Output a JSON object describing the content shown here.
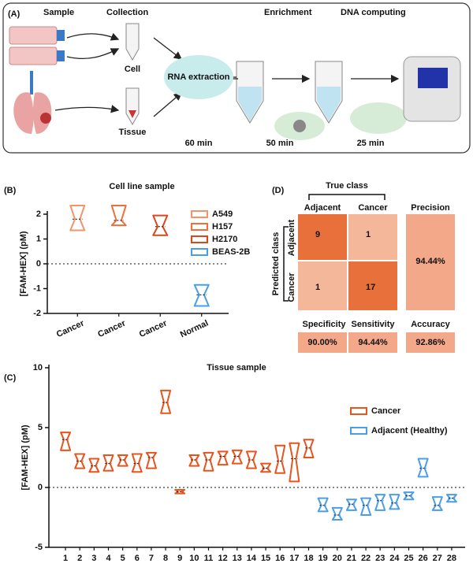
{
  "panel_a": {
    "label": "(A)",
    "steps": [
      "Sample",
      "Collection",
      "Enrichment",
      "DNA computing"
    ],
    "cell": "Cell",
    "tissue": "Tissue",
    "rna": "RNA extraction",
    "times": [
      "60 min",
      "50 min",
      "25 min"
    ]
  },
  "chart_data": [
    {
      "type": "box",
      "label": "(B)",
      "title": "Cell line sample",
      "y_label": "[FAM-HEX] (pM)",
      "categories": [
        "Cancer",
        "Cancer",
        "Cancer",
        "Normal"
      ],
      "series": [
        {
          "name": "A549",
          "color": "#f2946a",
          "low": [
            1.35,
            null,
            null,
            null
          ],
          "median": [
            1.8,
            null,
            null,
            null
          ],
          "high": [
            2.35,
            null,
            null,
            null
          ]
        },
        {
          "name": "H157",
          "color": "#ee6f3c",
          "low": [
            null,
            1.55,
            null,
            null
          ],
          "median": [
            null,
            1.75,
            null,
            null
          ],
          "high": [
            null,
            2.35,
            null,
            null
          ]
        },
        {
          "name": "H2170",
          "color": "#d9481a",
          "low": [
            null,
            null,
            1.15,
            null
          ],
          "median": [
            null,
            null,
            1.5,
            null
          ],
          "high": [
            null,
            null,
            1.95,
            null
          ]
        },
        {
          "name": "BEAS-2B",
          "color": "#4a9ee8",
          "low": [
            null,
            null,
            null,
            -1.7
          ],
          "median": [
            null,
            null,
            null,
            -1.25
          ],
          "high": [
            null,
            null,
            null,
            -0.85
          ]
        }
      ],
      "ylim": [
        -2,
        2
      ],
      "yticks": [
        -2,
        -1,
        0,
        1,
        2
      ],
      "zero_line": true
    },
    {
      "type": "box",
      "label": "(C)",
      "title": "Tissue sample",
      "y_label": "[FAM-HEX] (pM)",
      "categories": [
        "1",
        "2",
        "3",
        "4",
        "5",
        "6",
        "7",
        "8",
        "9",
        "10",
        "11",
        "12",
        "13",
        "14",
        "15",
        "16",
        "17",
        "18",
        "19",
        "20",
        "21",
        "22",
        "23",
        "24",
        "25",
        "26",
        "27",
        "28"
      ],
      "series": [
        {
          "name": "Cancer",
          "color": "#e8541c",
          "low": [
            3.1,
            1.6,
            1.3,
            1.4,
            1.8,
            1.3,
            1.6,
            6.2,
            -0.5,
            1.8,
            1.4,
            1.9,
            2.0,
            1.6,
            1.3,
            1.2,
            0.5,
            2.5,
            null,
            null,
            null,
            null,
            null,
            null,
            null,
            null,
            null,
            null
          ],
          "median": [
            4.0,
            2.2,
            1.8,
            2.0,
            2.3,
            2.0,
            2.5,
            7.1,
            -0.35,
            2.3,
            2.3,
            2.6,
            2.6,
            2.3,
            1.6,
            2.2,
            2.4,
            3.3,
            null,
            null,
            null,
            null,
            null,
            null,
            null,
            null,
            null,
            null
          ],
          "high": [
            4.6,
            2.8,
            2.4,
            2.7,
            2.7,
            2.8,
            2.9,
            8.1,
            -0.2,
            2.7,
            2.9,
            3.0,
            3.1,
            3.0,
            2.0,
            3.5,
            3.7,
            4.0,
            null,
            null,
            null,
            null,
            null,
            null,
            null,
            null,
            null,
            null
          ]
        },
        {
          "name": "Adjacent (Healthy)",
          "color": "#4a9ee8",
          "low": [
            null,
            null,
            null,
            null,
            null,
            null,
            null,
            null,
            null,
            null,
            null,
            null,
            null,
            null,
            null,
            null,
            null,
            null,
            -2.0,
            -2.7,
            -1.9,
            -2.3,
            -1.9,
            -1.8,
            -1.0,
            0.9,
            -1.9,
            -1.2
          ],
          "median": [
            null,
            null,
            null,
            null,
            null,
            null,
            null,
            null,
            null,
            null,
            null,
            null,
            null,
            null,
            null,
            null,
            null,
            null,
            -1.5,
            -2.3,
            -1.4,
            -1.5,
            -1.1,
            -1.3,
            -0.7,
            1.6,
            -1.5,
            -0.9
          ],
          "high": [
            null,
            null,
            null,
            null,
            null,
            null,
            null,
            null,
            null,
            null,
            null,
            null,
            null,
            null,
            null,
            null,
            null,
            null,
            -0.9,
            -1.7,
            -1.0,
            -0.9,
            -0.6,
            -0.6,
            -0.4,
            2.4,
            -0.8,
            -0.6
          ]
        }
      ],
      "ylim": [
        -5,
        10
      ],
      "yticks": [
        -5,
        0,
        5,
        10
      ],
      "zero_line": true
    }
  ],
  "panel_d": {
    "label": "(D)",
    "true_class": "True class",
    "predicted_class": "Predicted class",
    "columns": [
      "Adjacent",
      "Cancer"
    ],
    "rows": [
      "Adjacent",
      "Cancer"
    ],
    "cells": [
      [
        9,
        1
      ],
      [
        1,
        17
      ]
    ],
    "precision_label": "Precision",
    "precision": "94.44%",
    "specificity_label": "Specificity",
    "specificity": "90.00%",
    "sensitivity_label": "Sensitivity",
    "sensitivity": "94.44%",
    "accuracy_label": "Accuracy",
    "accuracy": "92.86%"
  }
}
